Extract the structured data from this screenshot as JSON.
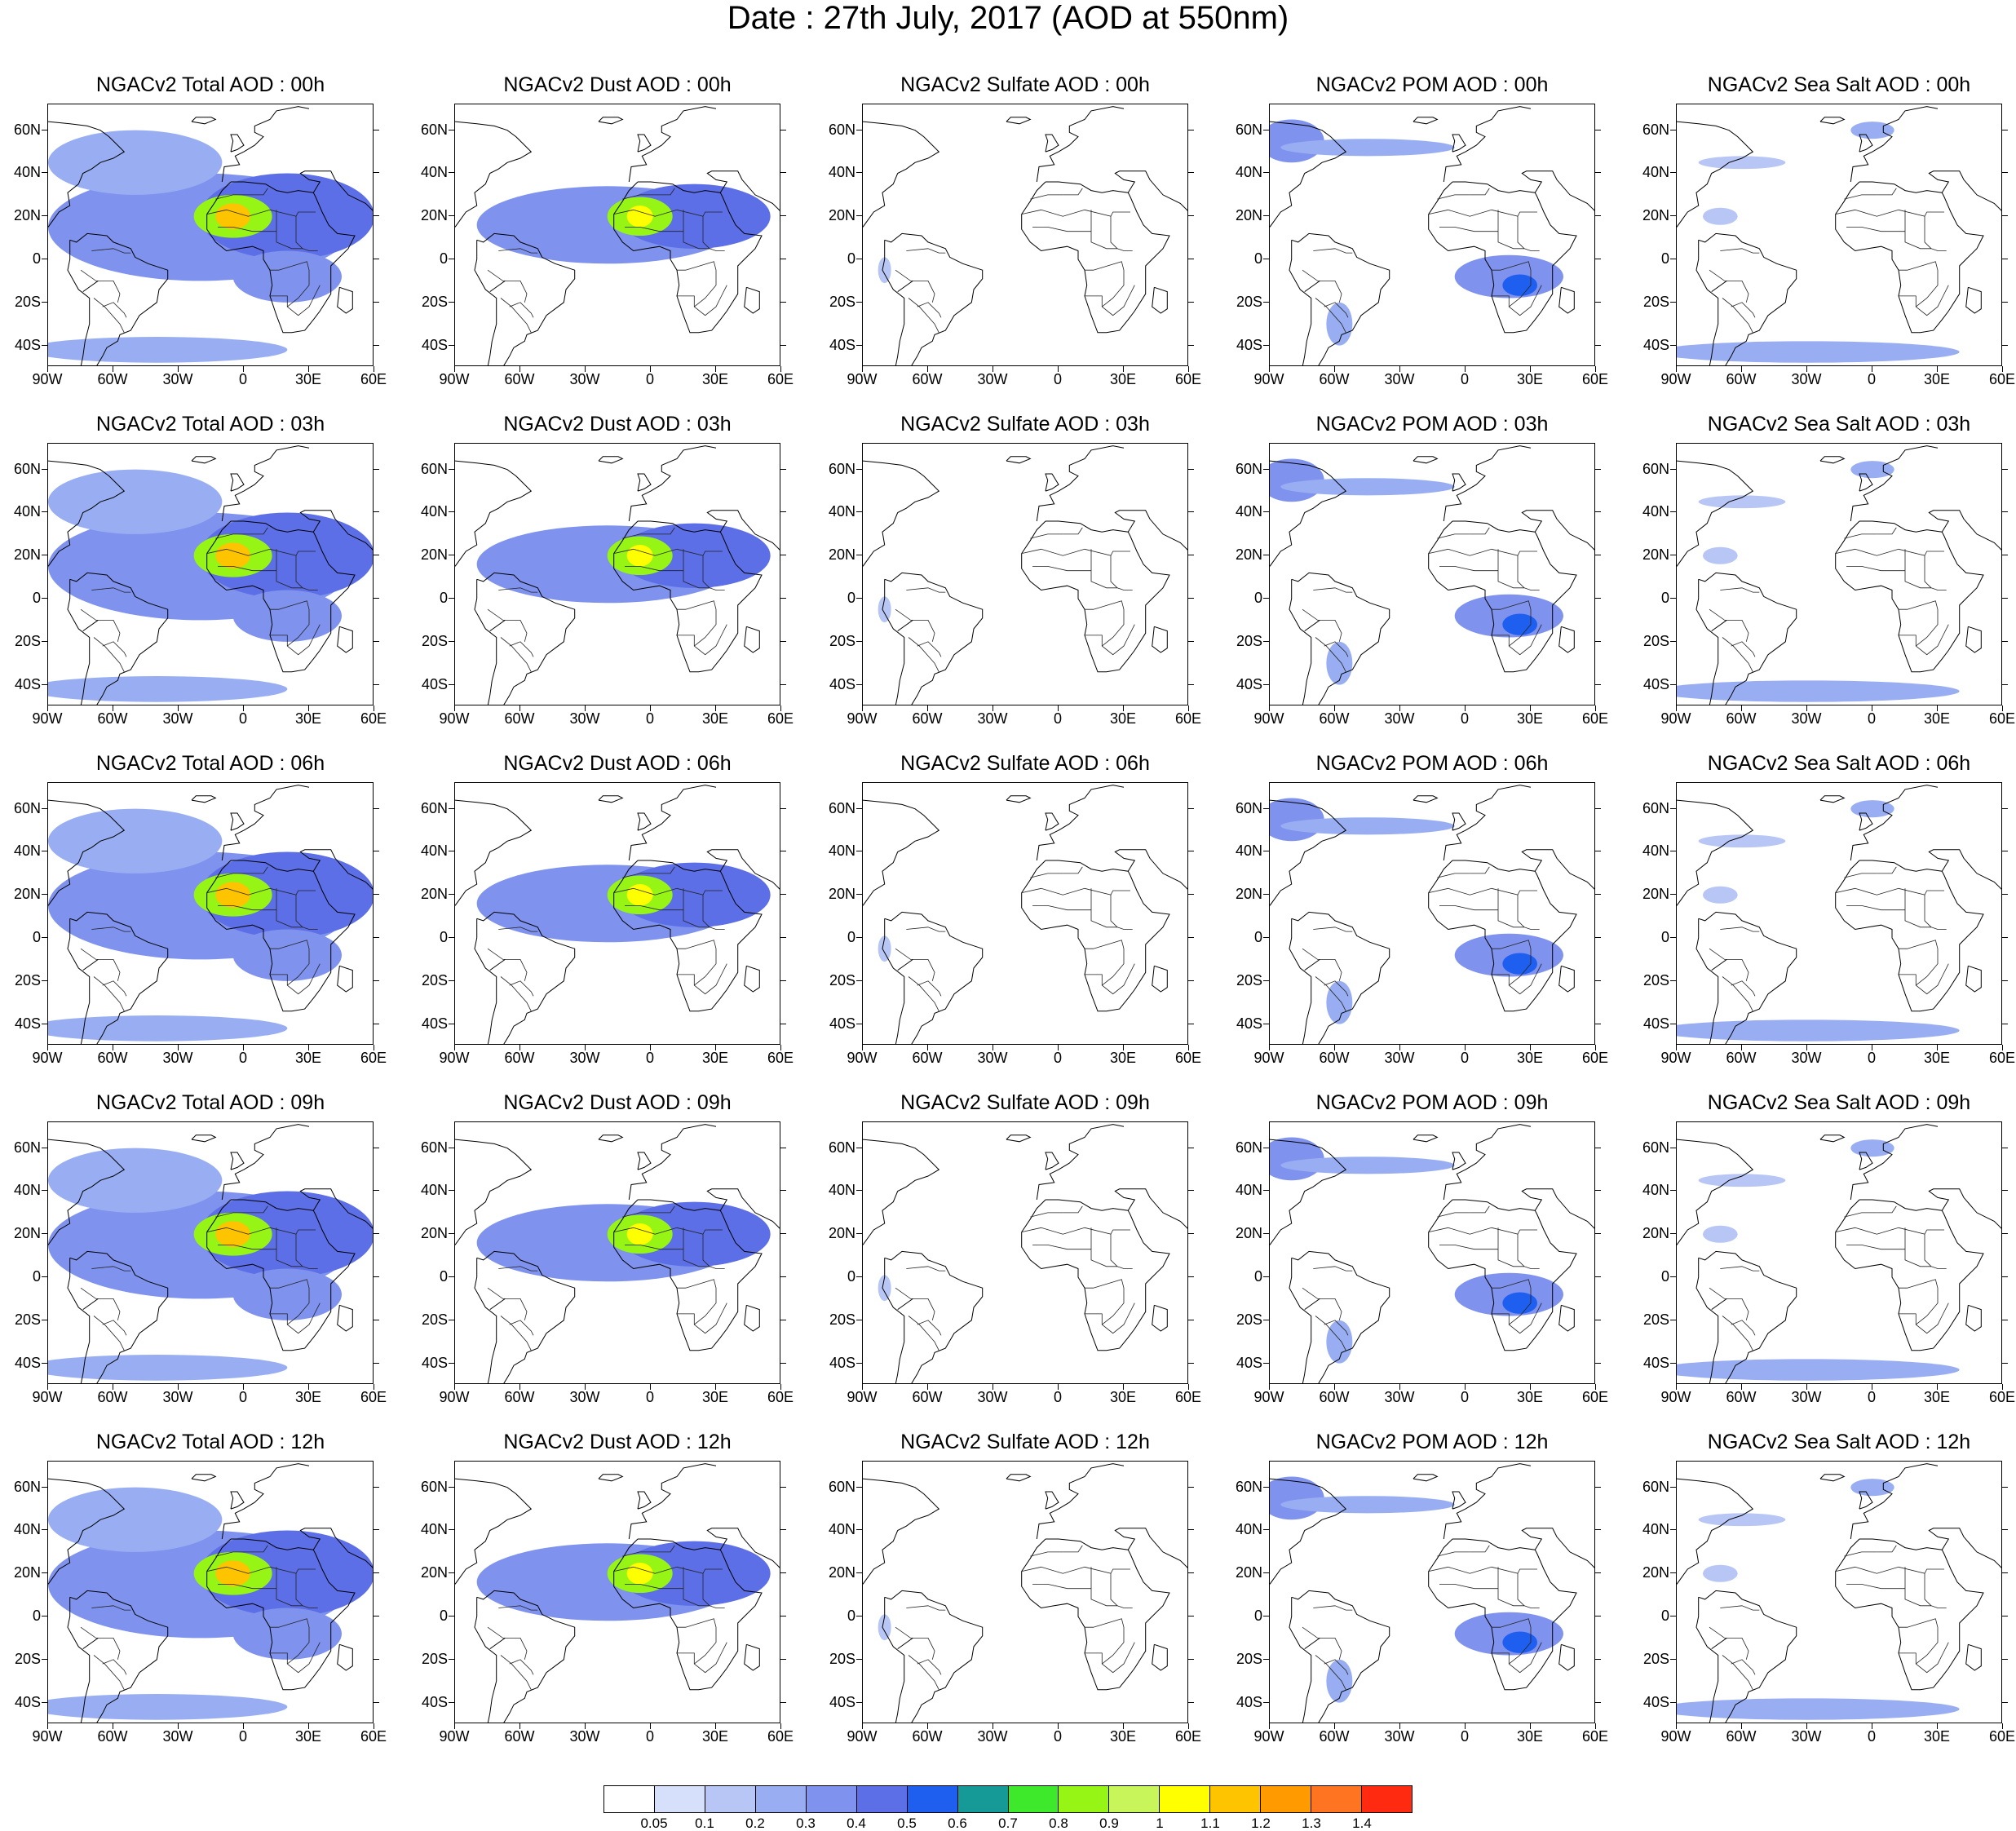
{
  "title": "Date : 27th July, 2017 (AOD at 550nm)",
  "lat_labels": [
    "60N",
    "40N",
    "20N",
    "0",
    "20S",
    "40S"
  ],
  "lat_values": [
    60,
    40,
    20,
    0,
    -20,
    -40
  ],
  "lon_labels": [
    "90W",
    "60W",
    "30W",
    "0",
    "30E",
    "60E"
  ],
  "lon_values": [
    -90,
    -60,
    -30,
    0,
    30,
    60
  ],
  "extent": {
    "lon_min": -90,
    "lon_max": 60,
    "lat_min": -50,
    "lat_max": 72
  },
  "columns": [
    {
      "species": "Total AOD",
      "field": "total"
    },
    {
      "species": "Dust AOD",
      "field": "dust"
    },
    {
      "species": "Sulfate AOD",
      "field": "sulfate"
    },
    {
      "species": "POM AOD",
      "field": "pom"
    },
    {
      "species": "Sea Salt AOD",
      "field": "seasalt"
    }
  ],
  "panel_titles": [
    [
      "NGACv2 Total AOD : 00h",
      "NGACv2 Dust AOD : 00h",
      "NGACv2 Sulfate AOD : 00h",
      "NGACv2 POM AOD : 00h",
      "NGACv2 Sea Salt AOD : 00h"
    ],
    [
      "NGACv2 Total AOD : 03h",
      "NGACv2 Dust AOD : 03h",
      "NGACv2 Sulfate AOD : 03h",
      "NGACv2 POM AOD : 03h",
      "NGACv2 Sea Salt AOD : 03h"
    ],
    [
      "NGACv2 Total AOD : 06h",
      "NGACv2 Dust AOD : 06h",
      "NGACv2 Sulfate AOD : 06h",
      "NGACv2 POM AOD : 06h",
      "NGACv2 Sea Salt AOD : 06h"
    ],
    [
      "NGACv2 Total AOD : 09h",
      "NGACv2 Dust AOD : 09h",
      "NGACv2 Sulfate AOD : 09h",
      "NGACv2 POM AOD : 09h",
      "NGACv2 Sea Salt  AOD : 09h"
    ],
    [
      "NGACv2 Total AOD  : 12h",
      "NGACv2 Dust AOD : 12h",
      "NGACv2 Sulfate AOD : 12h",
      "NGACv2 POM  AOD : 12h",
      "NGACv2 Sea Salt  AOD : 12h"
    ]
  ],
  "colorbar": {
    "levels": [
      "0.05",
      "0.1",
      "0.2",
      "0.3",
      "0.4",
      "0.5",
      "0.6",
      "0.7",
      "0.8",
      "0.9",
      "1",
      "1.1",
      "1.2",
      "1.3",
      "1.4"
    ],
    "colors": [
      "#ffffff",
      "#d6e0fa",
      "#b7c6f5",
      "#99aef2",
      "#7f92ee",
      "#5c6fe6",
      "#1f5ff0",
      "#159a98",
      "#3ee82a",
      "#96f514",
      "#c7f55a",
      "#ffff00",
      "#ffc400",
      "#ff9a00",
      "#ff7420",
      "#ff2a10"
    ]
  },
  "aerosol_fields": {
    "total": [
      {
        "lon": -20,
        "lat": 15,
        "rx": 70,
        "ry": 25,
        "v": 0.3
      },
      {
        "lon": 20,
        "lat": 20,
        "rx": 40,
        "ry": 20,
        "v": 0.4
      },
      {
        "lon": -5,
        "lat": 20,
        "rx": 18,
        "ry": 10,
        "v": 0.8
      },
      {
        "lon": -5,
        "lat": 20,
        "rx": 8,
        "ry": 6,
        "v": 1.1
      },
      {
        "lon": -50,
        "lat": 45,
        "rx": 40,
        "ry": 15,
        "v": 0.2
      },
      {
        "lon": 20,
        "lat": -8,
        "rx": 25,
        "ry": 12,
        "v": 0.3
      },
      {
        "lon": -40,
        "lat": -42,
        "rx": 60,
        "ry": 6,
        "v": 0.2
      }
    ],
    "dust": [
      {
        "lon": -20,
        "lat": 16,
        "rx": 60,
        "ry": 18,
        "v": 0.3
      },
      {
        "lon": 20,
        "lat": 20,
        "rx": 35,
        "ry": 15,
        "v": 0.4
      },
      {
        "lon": -5,
        "lat": 20,
        "rx": 15,
        "ry": 9,
        "v": 0.8
      },
      {
        "lon": -5,
        "lat": 20,
        "rx": 6,
        "ry": 5,
        "v": 1.0
      }
    ],
    "sulfate": [
      {
        "lon": -80,
        "lat": -5,
        "rx": 3,
        "ry": 6,
        "v": 0.1
      }
    ],
    "pom": [
      {
        "lon": 20,
        "lat": -8,
        "rx": 25,
        "ry": 10,
        "v": 0.3
      },
      {
        "lon": 25,
        "lat": -12,
        "rx": 8,
        "ry": 5,
        "v": 0.5
      },
      {
        "lon": -80,
        "lat": 55,
        "rx": 15,
        "ry": 10,
        "v": 0.3
      },
      {
        "lon": -45,
        "lat": 52,
        "rx": 40,
        "ry": 4,
        "v": 0.2
      },
      {
        "lon": -58,
        "lat": -30,
        "rx": 6,
        "ry": 10,
        "v": 0.2
      }
    ],
    "seasalt": [
      {
        "lon": -30,
        "lat": -43,
        "rx": 70,
        "ry": 5,
        "v": 0.2
      },
      {
        "lon": -70,
        "lat": 20,
        "rx": 8,
        "ry": 4,
        "v": 0.1
      },
      {
        "lon": 0,
        "lat": 60,
        "rx": 10,
        "ry": 4,
        "v": 0.2
      },
      {
        "lon": -60,
        "lat": 45,
        "rx": 20,
        "ry": 3,
        "v": 0.1
      }
    ]
  },
  "coastlines": [
    [
      [
        -90,
        15
      ],
      [
        -85,
        22
      ],
      [
        -80,
        25
      ],
      [
        -81,
        31
      ],
      [
        -76,
        35
      ],
      [
        -74,
        40
      ],
      [
        -70,
        42
      ],
      [
        -66,
        45
      ],
      [
        -60,
        47
      ],
      [
        -55,
        50
      ],
      [
        -58,
        53
      ],
      [
        -62,
        57
      ],
      [
        -66,
        60
      ],
      [
        -72,
        62
      ],
      [
        -80,
        63
      ],
      [
        -90,
        64
      ]
    ],
    [
      [
        -80,
        9
      ],
      [
        -77,
        8
      ],
      [
        -72,
        12
      ],
      [
        -63,
        11
      ],
      [
        -60,
        8
      ],
      [
        -52,
        5
      ],
      [
        -50,
        1
      ],
      [
        -44,
        -2
      ],
      [
        -35,
        -5
      ],
      [
        -35,
        -9
      ],
      [
        -39,
        -14
      ],
      [
        -40,
        -20
      ],
      [
        -44,
        -23
      ],
      [
        -48,
        -26
      ],
      [
        -52,
        -33
      ],
      [
        -57,
        -35
      ],
      [
        -58,
        -38
      ],
      [
        -63,
        -41
      ],
      [
        -65,
        -45
      ],
      [
        -68,
        -50
      ]
    ],
    [
      [
        -80,
        9
      ],
      [
        -80,
        0
      ],
      [
        -81,
        -5
      ],
      [
        -76,
        -14
      ],
      [
        -71,
        -18
      ],
      [
        -71,
        -30
      ],
      [
        -73,
        -38
      ],
      [
        -74,
        -45
      ],
      [
        -75,
        -50
      ]
    ],
    [
      [
        -6,
        36
      ],
      [
        -10,
        32
      ],
      [
        -13,
        27
      ],
      [
        -17,
        21
      ],
      [
        -17,
        14
      ],
      [
        -15,
        11
      ],
      [
        -13,
        8
      ],
      [
        -8,
        4
      ],
      [
        -2,
        5
      ],
      [
        4,
        6
      ],
      [
        9,
        4
      ],
      [
        9,
        0
      ],
      [
        12,
        -5
      ],
      [
        13,
        -12
      ],
      [
        12,
        -17
      ],
      [
        15,
        -26
      ],
      [
        18,
        -34
      ],
      [
        22,
        -34
      ],
      [
        28,
        -33
      ],
      [
        32,
        -28
      ],
      [
        35,
        -24
      ],
      [
        40,
        -16
      ],
      [
        40,
        -10
      ],
      [
        40,
        -3
      ],
      [
        43,
        0
      ],
      [
        48,
        5
      ],
      [
        51,
        11
      ],
      [
        43,
        12
      ],
      [
        39,
        16
      ],
      [
        36,
        22
      ],
      [
        33,
        29
      ],
      [
        32,
        31
      ],
      [
        25,
        32
      ],
      [
        20,
        31
      ],
      [
        15,
        32
      ],
      [
        10,
        35
      ],
      [
        0,
        36
      ],
      [
        -6,
        36
      ]
    ],
    [
      [
        -10,
        36
      ],
      [
        -9,
        43
      ],
      [
        -2,
        44
      ],
      [
        -4,
        48
      ],
      [
        0,
        50
      ],
      [
        5,
        53
      ],
      [
        9,
        57
      ],
      [
        5,
        59
      ],
      [
        5,
        62
      ],
      [
        12,
        65
      ],
      [
        15,
        69
      ],
      [
        25,
        71
      ],
      [
        30,
        70
      ]
    ],
    [
      [
        -6,
        50
      ],
      [
        -5,
        55
      ],
      [
        -6,
        58
      ],
      [
        -3,
        58
      ],
      [
        0,
        53
      ],
      [
        -3,
        51
      ],
      [
        -6,
        50
      ]
    ],
    [
      [
        -24,
        64
      ],
      [
        -22,
        66
      ],
      [
        -15,
        66
      ],
      [
        -13,
        65
      ],
      [
        -18,
        63
      ],
      [
        -24,
        64
      ]
    ],
    [
      [
        44,
        -13
      ],
      [
        50,
        -15
      ],
      [
        50,
        -23
      ],
      [
        47,
        -25
      ],
      [
        43,
        -22
      ],
      [
        44,
        -13
      ]
    ],
    [
      [
        32,
        31
      ],
      [
        35,
        36
      ],
      [
        30,
        37
      ],
      [
        26,
        40
      ],
      [
        28,
        41
      ],
      [
        40,
        41
      ],
      [
        42,
        37
      ],
      [
        48,
        30
      ],
      [
        56,
        26
      ],
      [
        58,
        24
      ],
      [
        60,
        22
      ]
    ],
    [
      [
        -74,
        -15
      ],
      [
        -67,
        -10
      ]
    ]
  ],
  "borders": [
    [
      [
        -17,
        21
      ],
      [
        -8,
        23
      ],
      [
        2,
        20
      ],
      [
        12,
        23
      ],
      [
        24,
        20
      ],
      [
        25,
        22
      ],
      [
        33,
        22
      ]
    ],
    [
      [
        -13,
        28
      ],
      [
        -5,
        30
      ],
      [
        2,
        30
      ]
    ],
    [
      [
        2,
        30
      ],
      [
        9,
        30
      ],
      [
        11,
        33
      ]
    ],
    [
      [
        15,
        23
      ],
      [
        15,
        8
      ],
      [
        22,
        5
      ],
      [
        27,
        5
      ],
      [
        30,
        4
      ],
      [
        34,
        4
      ]
    ],
    [
      [
        24,
        20
      ],
      [
        24,
        8
      ],
      [
        27,
        5
      ]
    ],
    [
      [
        -12,
        15
      ],
      [
        -5,
        15
      ],
      [
        4,
        13
      ],
      [
        15,
        13
      ]
    ],
    [
      [
        12,
        -5
      ],
      [
        16,
        -5
      ],
      [
        29,
        -1
      ],
      [
        30,
        -5
      ],
      [
        30,
        -12
      ],
      [
        25,
        -18
      ],
      [
        20,
        -22
      ]
    ],
    [
      [
        12,
        -17
      ],
      [
        20,
        -17
      ],
      [
        20,
        -22
      ],
      [
        25,
        -26
      ],
      [
        30,
        -22
      ],
      [
        32,
        -18
      ],
      [
        35,
        -12
      ]
    ],
    [
      [
        -65,
        -22
      ],
      [
        -60,
        -20
      ],
      [
        -55,
        -25
      ],
      [
        -54,
        -27
      ]
    ],
    [
      [
        -75,
        -5
      ],
      [
        -68,
        -10
      ],
      [
        -60,
        -10
      ],
      [
        -57,
        -16
      ],
      [
        -58,
        -20
      ]
    ],
    [
      [
        -70,
        4
      ],
      [
        -60,
        5
      ],
      [
        -55,
        3
      ],
      [
        -52,
        3
      ]
    ],
    [
      [
        -69,
        -18
      ],
      [
        -64,
        -22
      ],
      [
        -57,
        -30
      ],
      [
        -55,
        -34
      ]
    ]
  ]
}
